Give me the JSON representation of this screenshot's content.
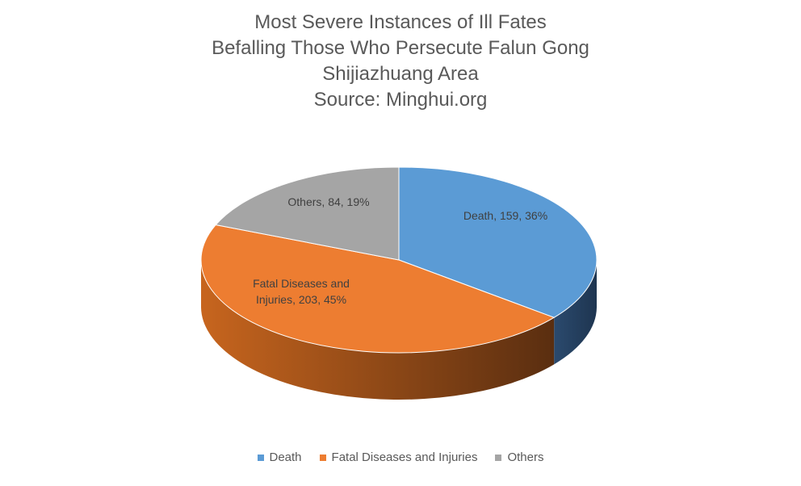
{
  "chart_data": {
    "type": "pie",
    "title_lines": [
      "Most Severe Instances of Ill Fates",
      "Befalling Those Who Persecute Falun Gong",
      "Shijiazhuang Area",
      "Source: Minghui.org"
    ],
    "slices": [
      {
        "name": "Death",
        "value": 159,
        "percent": "36%",
        "color": "#5B9BD5",
        "label_lines": [
          "Death, 159, 36%"
        ]
      },
      {
        "name": "Fatal Diseases and Injuries",
        "value": 203,
        "percent": "45%",
        "color": "#ED7D31",
        "label_lines": [
          "Fatal Diseases and",
          "Injuries, 203, 45%"
        ]
      },
      {
        "name": "Others",
        "value": 84,
        "percent": "19%",
        "color": "#A5A5A5",
        "label_lines": [
          "Others, 84, 19%"
        ]
      }
    ],
    "legend": {
      "position": "bottom",
      "items": [
        "Death",
        "Fatal Diseases and Injuries",
        "Others"
      ]
    }
  }
}
